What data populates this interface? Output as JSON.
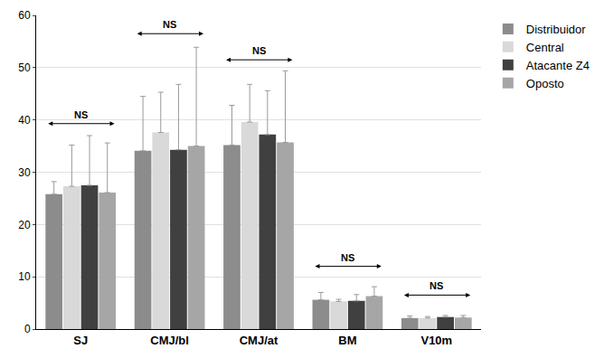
{
  "chart_data": {
    "type": "bar",
    "categories": [
      "SJ",
      "CMJ/bl",
      "CMJ/at",
      "BM",
      "V10m"
    ],
    "series": [
      {
        "name": "Distribuidor",
        "color": "#8c8c8c",
        "values": [
          25.8,
          34.1,
          35.2,
          5.6,
          2.1
        ],
        "errors": [
          2.4,
          10.4,
          7.6,
          1.4,
          0.4
        ]
      },
      {
        "name": "Central",
        "color": "#d9d9d9",
        "values": [
          27.3,
          37.6,
          39.6,
          5.3,
          2.1
        ],
        "errors": [
          7.9,
          7.7,
          7.2,
          0.4,
          0.3
        ]
      },
      {
        "name": "Atacante Z4",
        "color": "#404040",
        "values": [
          27.5,
          34.3,
          37.2,
          5.4,
          2.3
        ],
        "errors": [
          9.5,
          12.5,
          8.4,
          1.2,
          0.3
        ]
      },
      {
        "name": "Oposto",
        "color": "#a6a6a6",
        "values": [
          26.1,
          35.0,
          35.7,
          6.3,
          2.2
        ],
        "errors": [
          9.5,
          18.9,
          13.7,
          1.8,
          0.4
        ]
      }
    ],
    "ylim": [
      0,
      60
    ],
    "yticks": [
      0,
      10,
      20,
      30,
      40,
      50,
      60
    ],
    "grid": true,
    "legend": "right",
    "annotations": [
      {
        "text": "NS",
        "category": "SJ",
        "y": 39.3
      },
      {
        "text": "NS",
        "category": "CMJ/bl",
        "y": 56.5
      },
      {
        "text": "NS",
        "category": "CMJ/at",
        "y": 51.5
      },
      {
        "text": "NS",
        "category": "BM",
        "y": 12
      },
      {
        "text": "NS",
        "category": "V10m",
        "y": 6.5
      }
    ]
  }
}
